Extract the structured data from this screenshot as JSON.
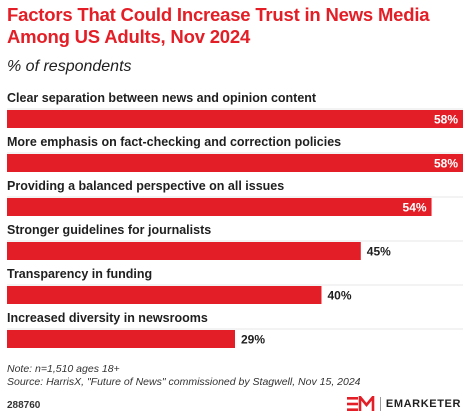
{
  "header": {
    "title": "Factors That Could Increase Trust in News Media Among US Adults, Nov 2024",
    "subtitle": "% of respondents"
  },
  "chart_data": {
    "type": "bar",
    "orientation": "horizontal",
    "categories": [
      "Clear separation between news and opinion content",
      "More emphasis on fact-checking and correction policies",
      "Providing a balanced perspective on all issues",
      "Stronger guidelines for journalists",
      "Transparency in funding",
      "Increased diversity in newsrooms"
    ],
    "values": [
      58,
      58,
      54,
      45,
      40,
      29
    ],
    "value_labels": [
      "58%",
      "58%",
      "54%",
      "45%",
      "40%",
      "29%"
    ],
    "xlim": [
      0,
      58
    ],
    "bar_color": "#e41e26",
    "grid": false,
    "legend": "none"
  },
  "footer": {
    "note": "Note: n=1,510 ages 18+",
    "source": "Source: HarrisX, \"Future of News\" commissioned by Stagwell, Nov 15, 2024",
    "chart_id": "288760",
    "brand_mark": "EM",
    "brand_name": "EMARKETER"
  }
}
